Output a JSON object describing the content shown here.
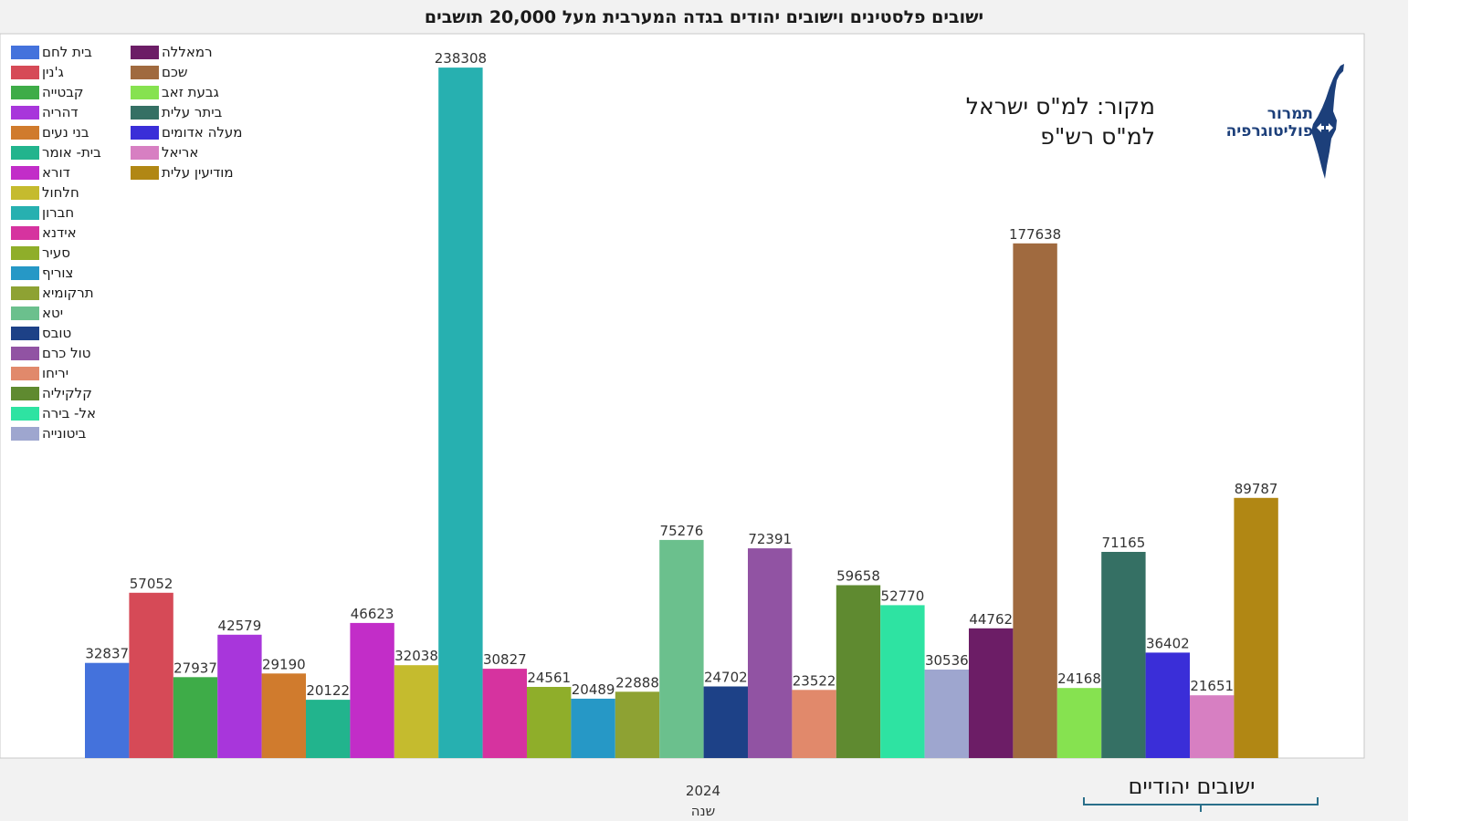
{
  "chart_data": {
    "type": "bar",
    "title": "ישובים פלסטינים וישובים יהודים בגדה המערבית מעל 20,000 תושבים",
    "xlabel": "שנה",
    "x_tick": "2024",
    "ylim": [
      0,
      250000
    ],
    "legend_position": "top-left",
    "series": [
      {
        "name": "בית לחם",
        "value": 32837,
        "color": "#4472dc"
      },
      {
        "name": "ג'נין",
        "value": 57052,
        "color": "#d64a57"
      },
      {
        "name": "קבטייה",
        "value": 27937,
        "color": "#3eac48"
      },
      {
        "name": "דהריה",
        "value": 42579,
        "color": "#a836db"
      },
      {
        "name": "בני נעים",
        "value": 29190,
        "color": "#d07b2d"
      },
      {
        "name": "בית- אומר",
        "value": 20122,
        "color": "#22b48d"
      },
      {
        "name": "דורא",
        "value": 46623,
        "color": "#c22dc8"
      },
      {
        "name": "חלחול",
        "value": 32038,
        "color": "#c5bb2e"
      },
      {
        "name": "חברון",
        "value": 238308,
        "color": "#27b0b0"
      },
      {
        "name": "אידנא",
        "value": 30827,
        "color": "#d6339f"
      },
      {
        "name": "סעיר",
        "value": 24561,
        "color": "#8fae2a"
      },
      {
        "name": "צוריף",
        "value": 20489,
        "color": "#2698c6"
      },
      {
        "name": "תרקומיא",
        "value": 22888,
        "color": "#8ea233"
      },
      {
        "name": "יטא",
        "value": 75276,
        "color": "#6bc08d"
      },
      {
        "name": "טובס",
        "value": 24702,
        "color": "#1d4187"
      },
      {
        "name": "טול כרם",
        "value": 72391,
        "color": "#9153a3"
      },
      {
        "name": "יריחו",
        "value": 23522,
        "color": "#e1896b"
      },
      {
        "name": "קלקיליה",
        "value": 59658,
        "color": "#5f8a30"
      },
      {
        "name": "אל- בירה",
        "value": 52770,
        "color": "#2ee3a2"
      },
      {
        "name": "ביטונייה",
        "value": 30536,
        "color": "#9ea6cf"
      },
      {
        "name": "רמאללה",
        "value": 44762,
        "color": "#6c1d66"
      },
      {
        "name": "שכם",
        "value": 177638,
        "color": "#a06a3f"
      },
      {
        "name": "גבעת זאב",
        "value": 24168,
        "color": "#86e250"
      },
      {
        "name": "ביתר עלית",
        "value": 71165,
        "color": "#357064"
      },
      {
        "name": "מעלה אדומים",
        "value": 36402,
        "color": "#3a2ed8"
      },
      {
        "name": "אריאל",
        "value": 21651,
        "color": "#d77fc2"
      },
      {
        "name": "מודיעין עלית",
        "value": 89787,
        "color": "#b18714"
      }
    ],
    "annotations": {
      "source_line1": "מקור: למ\"ס ישראל",
      "source_line2": "למ\"ס רש\"פ",
      "group_label": "ישובים יהודיים"
    }
  },
  "logo": {
    "text_line1": "תמרור",
    "text_line2": "פוליטוגרפיה",
    "color": "#1c3f7a"
  }
}
